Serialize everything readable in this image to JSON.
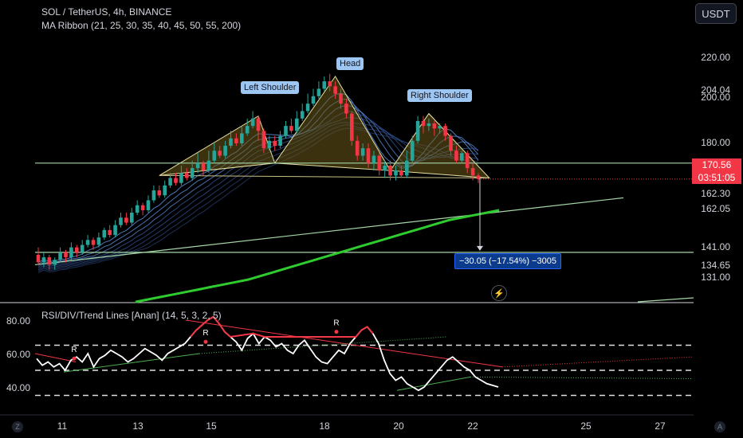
{
  "header": {
    "symbol_line": "SOL / TetherUS, 4h, BINANCE",
    "indicator_line": "MA Ribbon (21, 25, 30, 35, 40, 45, 50, 55, 200)"
  },
  "currency_button": "USDT",
  "price_axis": {
    "ticks": [
      "220.00",
      "204.04",
      "200.00",
      "180.00",
      "162.30",
      "162.05",
      "141.00",
      "134.65",
      "131.00"
    ],
    "last_price": "170.56",
    "countdown": "03:51:05"
  },
  "pattern_labels": {
    "left_shoulder": "Left Shoulder",
    "head": "Head",
    "right_shoulder": "Right Shoulder"
  },
  "measure": {
    "text": "−30.05 (−17.54%) −3005"
  },
  "rsi": {
    "title": "RSI/DIV/Trend Lines [Anan] (14, 5, 3, 2, 5)",
    "ticks": [
      "80.00",
      "60.00",
      "40.00"
    ],
    "divergence_markers": [
      "R",
      "R",
      "R"
    ]
  },
  "time_axis": {
    "ticks": [
      "11",
      "13",
      "15",
      "18",
      "20",
      "22",
      "25",
      "27"
    ]
  },
  "corner_icons": {
    "left": "Z",
    "right": "A"
  },
  "colors": {
    "up": "#26a69a",
    "down": "#f23645",
    "ma200": "#2ecc2e",
    "neckline": "#a5d6a7",
    "pattern_fill": "#6b5a1a",
    "rsi_line": "#ffffff",
    "label_bg": "#9ec6f2"
  },
  "chart_data": {
    "type": "candlestick",
    "title": "SOL / TetherUS, 4h, BINANCE",
    "ylim": [
      125,
      230
    ],
    "x_tick_labels": [
      "11",
      "13",
      "15",
      "18",
      "20",
      "22",
      "25",
      "27"
    ],
    "candles": [
      [
        140,
        137,
        143,
        136
      ],
      [
        137,
        139,
        141,
        135
      ],
      [
        139,
        136,
        140,
        134
      ],
      [
        136,
        138,
        139,
        134
      ],
      [
        138,
        141,
        143,
        137
      ],
      [
        141,
        139,
        142,
        137
      ],
      [
        139,
        143,
        145,
        138
      ],
      [
        143,
        141,
        144,
        139
      ],
      [
        141,
        144,
        146,
        140
      ],
      [
        144,
        146,
        148,
        143
      ],
      [
        146,
        144,
        147,
        142
      ],
      [
        144,
        147,
        149,
        143
      ],
      [
        147,
        150,
        151,
        146
      ],
      [
        150,
        148,
        152,
        147
      ],
      [
        148,
        152,
        154,
        147
      ],
      [
        152,
        155,
        157,
        151
      ],
      [
        155,
        153,
        157,
        152
      ],
      [
        153,
        157,
        159,
        152
      ],
      [
        157,
        160,
        162,
        156
      ],
      [
        160,
        158,
        161,
        156
      ],
      [
        158,
        162,
        164,
        157
      ],
      [
        162,
        166,
        168,
        161
      ],
      [
        166,
        164,
        168,
        163
      ],
      [
        164,
        168,
        170,
        163
      ],
      [
        168,
        171,
        173,
        167
      ],
      [
        171,
        169,
        173,
        168
      ],
      [
        169,
        173,
        176,
        168
      ],
      [
        173,
        171,
        175,
        170
      ],
      [
        171,
        175,
        178,
        170
      ],
      [
        175,
        177,
        181,
        173
      ],
      [
        177,
        174,
        178,
        172
      ],
      [
        174,
        178,
        182,
        173
      ],
      [
        178,
        182,
        185,
        177
      ],
      [
        182,
        180,
        184,
        179
      ],
      [
        180,
        184,
        186,
        179
      ],
      [
        184,
        187,
        190,
        183
      ],
      [
        187,
        185,
        189,
        184
      ],
      [
        185,
        189,
        192,
        184
      ],
      [
        189,
        192,
        195,
        188
      ],
      [
        192,
        195,
        198,
        191
      ],
      [
        195,
        190,
        196,
        186
      ],
      [
        190,
        183,
        191,
        181
      ],
      [
        183,
        186,
        188,
        182
      ],
      [
        186,
        184,
        188,
        182
      ],
      [
        184,
        188,
        190,
        183
      ],
      [
        188,
        192,
        194,
        187
      ],
      [
        192,
        190,
        195,
        189
      ],
      [
        190,
        195,
        198,
        189
      ],
      [
        195,
        198,
        201,
        194
      ],
      [
        198,
        201,
        205,
        197
      ],
      [
        201,
        204,
        207,
        200
      ],
      [
        204,
        207,
        210,
        203
      ],
      [
        207,
        210,
        212,
        206
      ],
      [
        210,
        208,
        213,
        206
      ],
      [
        208,
        205,
        210,
        203
      ],
      [
        205,
        201,
        207,
        199
      ],
      [
        201,
        197,
        203,
        195
      ],
      [
        197,
        186,
        198,
        184
      ],
      [
        186,
        180,
        188,
        178
      ],
      [
        180,
        183,
        185,
        178
      ],
      [
        183,
        177,
        185,
        175
      ],
      [
        177,
        180,
        182,
        174
      ],
      [
        180,
        174,
        181,
        172
      ],
      [
        174,
        176,
        178,
        171
      ],
      [
        176,
        172,
        178,
        170
      ],
      [
        172,
        174,
        176,
        170
      ],
      [
        174,
        172,
        176,
        171
      ],
      [
        172,
        178,
        182,
        171
      ],
      [
        178,
        186,
        188,
        177
      ],
      [
        186,
        194,
        196,
        185
      ],
      [
        194,
        192,
        196,
        189
      ],
      [
        192,
        193,
        195,
        190
      ],
      [
        193,
        191,
        194,
        188
      ],
      [
        191,
        192,
        193,
        189
      ],
      [
        192,
        188,
        193,
        186
      ],
      [
        188,
        182,
        189,
        180
      ],
      [
        182,
        178,
        184,
        177
      ],
      [
        178,
        181,
        182,
        177
      ],
      [
        181,
        175,
        182,
        173
      ],
      [
        175,
        172,
        177,
        170
      ],
      [
        172,
        170.56,
        173,
        169
      ]
    ],
    "necklines": [
      {
        "name": "neckline",
        "from": [
          0,
          177
        ],
        "to": [
          80,
          177
        ]
      },
      {
        "name": "trendline",
        "from": [
          0,
          137
        ],
        "to": [
          100,
          162
        ]
      }
    ],
    "ma200": [
      121,
      122,
      123,
      124,
      125,
      126,
      127,
      128,
      129,
      130,
      131.5,
      133,
      134.5,
      136,
      137.5,
      139,
      140.5,
      142,
      143.5,
      145,
      146.5,
      148,
      149.5,
      151,
      152.5,
      154,
      155,
      156,
      157,
      158
    ],
    "measure_target": 141.0,
    "rsi_values": [
      57,
      53,
      55,
      52,
      54,
      50,
      56,
      58,
      55,
      60,
      52,
      57,
      59,
      62,
      60,
      58,
      55,
      57,
      60,
      63,
      61,
      59,
      56,
      60,
      62,
      64,
      66,
      70,
      74,
      77,
      80,
      82,
      78,
      73,
      70,
      67,
      62,
      69,
      72,
      66,
      70,
      68,
      64,
      66,
      62,
      60,
      65,
      68,
      63,
      58,
      55,
      54,
      58,
      62,
      60,
      66,
      70,
      74,
      76,
      72,
      66,
      56,
      48,
      44,
      46,
      42,
      40,
      38,
      40,
      44,
      48,
      52,
      56,
      58,
      55,
      52,
      50,
      46,
      44,
      42,
      41,
      40
    ]
  }
}
